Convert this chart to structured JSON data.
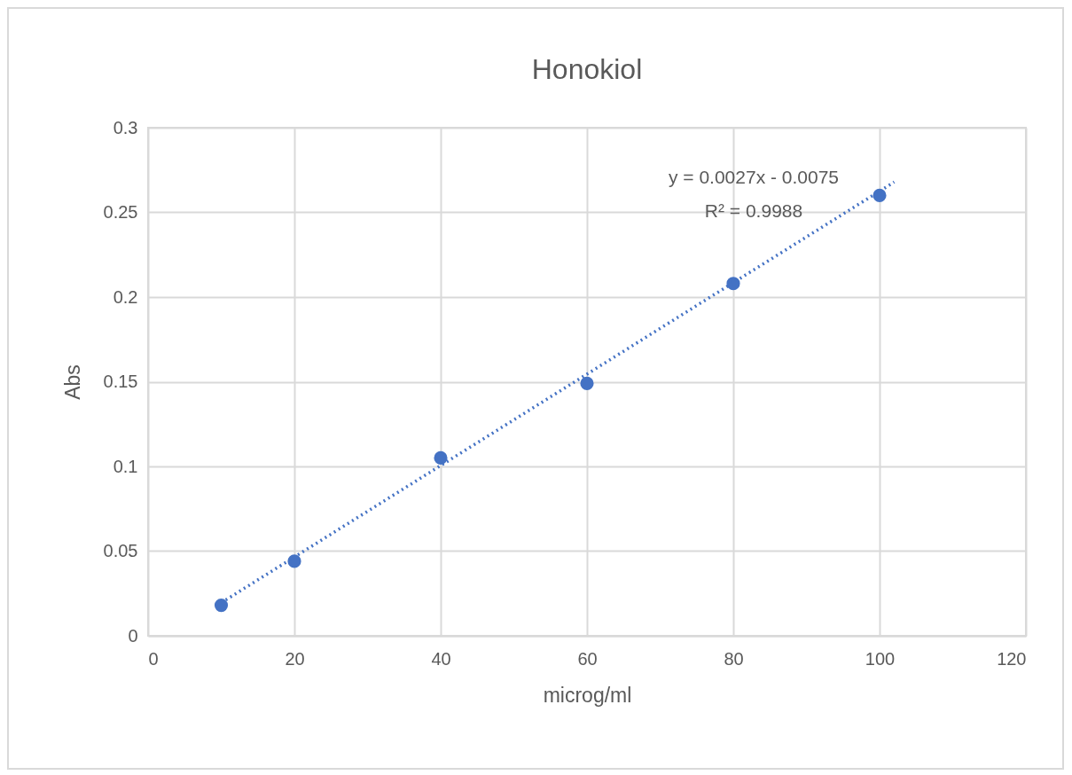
{
  "chart_data": {
    "type": "scatter",
    "title": "Honokiol",
    "xlabel": "microg/ml",
    "ylabel": "Abs",
    "x": [
      10,
      20,
      40,
      60,
      80,
      100
    ],
    "series": [
      {
        "color": "#4472c4",
        "marker": "circle",
        "values": [
          0.018,
          0.044,
          0.105,
          0.149,
          0.208,
          0.26
        ]
      },
      {
        "type": "line",
        "color": "#4472c4",
        "line_style": "dotted",
        "x": [
          10,
          102
        ],
        "values": [
          0.0195,
          0.2679
        ]
      }
    ],
    "xlim": [
      0,
      120
    ],
    "xticks": [
      0,
      20,
      40,
      60,
      80,
      100,
      120
    ],
    "ylim": [
      0,
      0.3
    ],
    "yticks": [
      0,
      0.05,
      0.1,
      0.15,
      0.2,
      0.25,
      0.3
    ],
    "grid": true,
    "annotations": [
      "y = 0.0027x - 0.0075",
      "R² = 0.9988"
    ]
  }
}
